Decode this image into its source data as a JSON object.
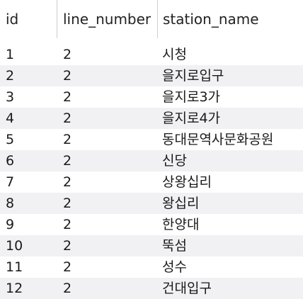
{
  "table": {
    "columns": [
      "id",
      "line_number",
      "station_name"
    ],
    "rows": [
      {
        "id": "1",
        "line_number": "2",
        "station_name": "시청"
      },
      {
        "id": "2",
        "line_number": "2",
        "station_name": "을지로입구"
      },
      {
        "id": "3",
        "line_number": "2",
        "station_name": "을지로3가"
      },
      {
        "id": "4",
        "line_number": "2",
        "station_name": "을지로4가"
      },
      {
        "id": "5",
        "line_number": "2",
        "station_name": "동대문역사문화공원"
      },
      {
        "id": "6",
        "line_number": "2",
        "station_name": "신당"
      },
      {
        "id": "7",
        "line_number": "2",
        "station_name": "상왕십리"
      },
      {
        "id": "8",
        "line_number": "2",
        "station_name": "왕십리"
      },
      {
        "id": "9",
        "line_number": "2",
        "station_name": "한양대"
      },
      {
        "id": "10",
        "line_number": "2",
        "station_name": "뚝섬"
      },
      {
        "id": "11",
        "line_number": "2",
        "station_name": "성수"
      },
      {
        "id": "12",
        "line_number": "2",
        "station_name": "건대입구"
      }
    ]
  },
  "colors": {
    "row_stripe": "#f1f1f3",
    "text": "#1a1a1a",
    "column_divider": "#cfcfcf"
  }
}
